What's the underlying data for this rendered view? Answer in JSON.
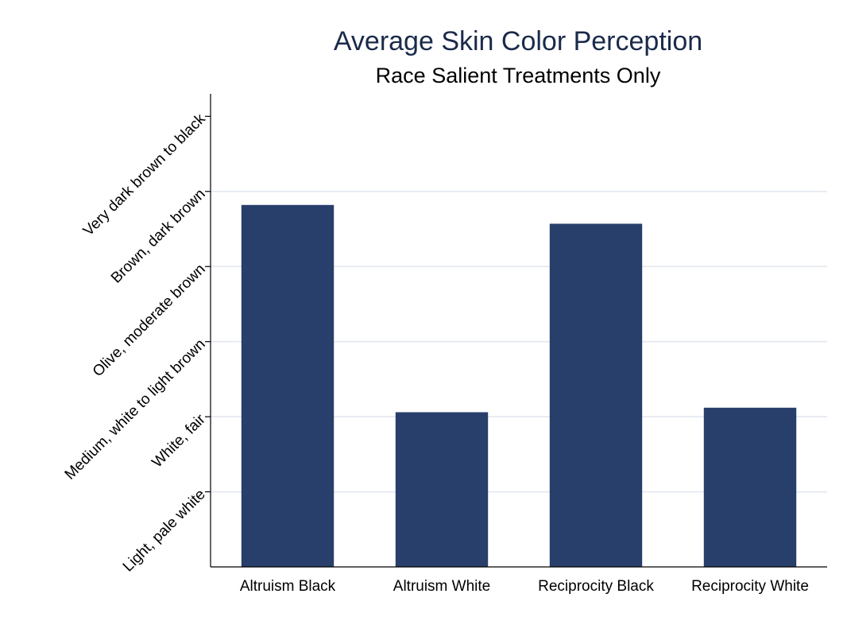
{
  "chart_data": {
    "type": "bar",
    "title": "Average Skin Color Perception",
    "subtitle": "Race Salient Treatments Only",
    "categories": [
      "Altruism Black",
      "Altruism White",
      "Reciprocity Black",
      "Reciprocity White"
    ],
    "values": [
      4.82,
      2.06,
      4.57,
      2.12
    ],
    "y_tick_values": [
      1,
      2,
      3,
      4,
      5,
      6
    ],
    "y_tick_labels": [
      "Light, pale white",
      "White, fair",
      "Medium, white to light brown",
      "Olive, moderate brown",
      "Brown, dark brown",
      "Very dark brown to black"
    ],
    "ylim": [
      0,
      6.3
    ],
    "grid": true,
    "bar_color": "#283e6b",
    "grid_color": "#e3e7ef"
  }
}
